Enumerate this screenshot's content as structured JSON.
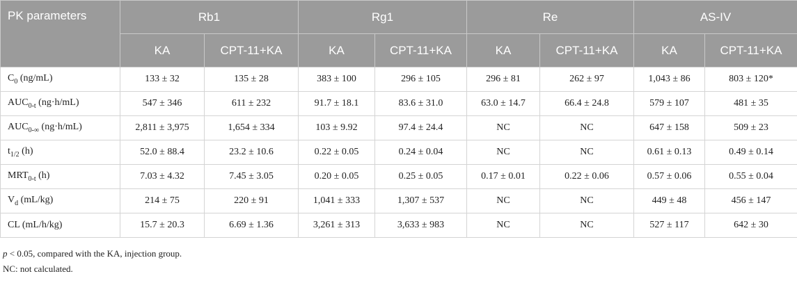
{
  "table": {
    "corner": "PK parameters",
    "groups": [
      "Rb1",
      "Rg1",
      "Re",
      "AS-IV"
    ],
    "subheaders": [
      "KA",
      "CPT-11+KA",
      "KA",
      "CPT-11+KA",
      "KA",
      "CPT-11+KA",
      "KA",
      "CPT-11+KA"
    ],
    "rows": [
      {
        "label": {
          "base": "C",
          "sub": "0",
          "unit": "(ng/mL)"
        },
        "cells": [
          "133 ± 32",
          "135 ± 28",
          "383 ± 100",
          "296 ± 105",
          "296 ± 81",
          "262 ± 97",
          "1,043 ± 86",
          "803 ± 120*"
        ]
      },
      {
        "label": {
          "base": "AUC",
          "sub": "0-t",
          "unit": "(ng·h/mL)"
        },
        "cells": [
          "547 ± 346",
          "611 ± 232",
          "91.7 ± 18.1",
          "83.6 ± 31.0",
          "63.0 ± 14.7",
          "66.4 ± 24.8",
          "579 ± 107",
          "481 ± 35"
        ]
      },
      {
        "label": {
          "base": "AUC",
          "sub": "0-∞",
          "unit": "(ng·h/mL)"
        },
        "cells": [
          "2,811 ± 3,975",
          "1,654 ± 334",
          "103 ± 9.92",
          "97.4 ± 24.4",
          "NC",
          "NC",
          "647 ± 158",
          "509 ± 23"
        ]
      },
      {
        "label": {
          "base": "t",
          "sub": "1/2",
          "unit": "(h)"
        },
        "cells": [
          "52.0 ± 88.4",
          "23.2 ± 10.6",
          "0.22 ± 0.05",
          "0.24 ± 0.04",
          "NC",
          "NC",
          "0.61 ± 0.13",
          "0.49 ± 0.14"
        ]
      },
      {
        "label": {
          "base": "MRT",
          "sub": "0-t",
          "unit": "(h)"
        },
        "cells": [
          "7.03 ± 4.32",
          "7.45 ± 3.05",
          "0.20 ± 0.05",
          "0.25 ± 0.05",
          "0.17 ± 0.01",
          "0.22 ± 0.06",
          "0.57 ± 0.06",
          "0.55 ± 0.04"
        ]
      },
      {
        "label": {
          "base": "V",
          "sub": "d",
          "unit": "(mL/kg)"
        },
        "cells": [
          "214 ± 75",
          "220 ± 91",
          "1,041 ± 333",
          "1,307 ± 537",
          "NC",
          "NC",
          "449 ± 48",
          "456 ± 147"
        ]
      },
      {
        "label": {
          "base": "CL",
          "unit": "(mL/h/kg)"
        },
        "cells": [
          "15.7 ± 20.3",
          "6.69 ± 1.36",
          "3,261 ± 313",
          "3,633 ± 983",
          "NC",
          "NC",
          "527 ± 117",
          "642 ± 30"
        ]
      }
    ]
  },
  "footnotes": [
    {
      "italic": "p",
      "text": " < 0.05, compared with the KA, injection group."
    },
    {
      "text": "NC: not calculated."
    }
  ]
}
